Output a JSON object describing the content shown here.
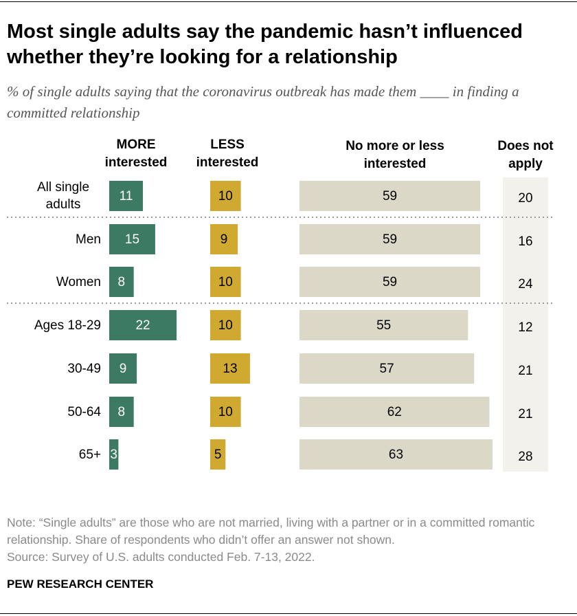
{
  "chart_data": {
    "type": "bar",
    "title": "Most single adults say the pandemic hasn’t influenced whether they’re looking for a relationship",
    "subtitle": "% of single adults saying that the coronavirus outbreak has made them ____ in finding a committed relationship",
    "categories": [
      "All single adults",
      "Men",
      "Women",
      "Ages 18-29",
      "30-49",
      "50-64",
      "65+"
    ],
    "series": [
      {
        "name": "MORE interested",
        "color": "#3d7a63",
        "values": [
          11,
          15,
          8,
          22,
          9,
          8,
          3
        ]
      },
      {
        "name": "LESS interested",
        "color": "#cfa930",
        "values": [
          10,
          9,
          10,
          10,
          13,
          10,
          5
        ]
      },
      {
        "name": "No more or less interested",
        "color": "#dcd8c8",
        "values": [
          59,
          59,
          59,
          55,
          57,
          62,
          63
        ]
      }
    ],
    "table_column": {
      "name": "Does not apply",
      "values": [
        20,
        16,
        24,
        12,
        21,
        21,
        28
      ]
    },
    "note": "Note: “Single adults” are those who are not married, living with a partner or in a committed romantic relationship. Share of respondents who didn’t offer an answer not shown.",
    "source": "Source: Survey of U.S. adults conducted Feb. 7-13, 2022.",
    "credit": "PEW RESEARCH CENTER"
  }
}
